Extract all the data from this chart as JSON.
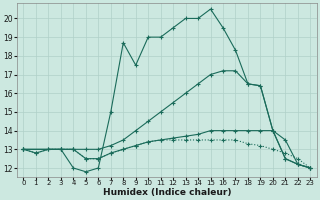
{
  "xlabel": "Humidex (Indice chaleur)",
  "bg_color": "#cce8e0",
  "line_color": "#1a6b5a",
  "grid_color": "#b0d0c8",
  "xlim": [
    -0.5,
    23.5
  ],
  "ylim": [
    11.5,
    20.8
  ],
  "xticks": [
    0,
    1,
    2,
    3,
    4,
    5,
    6,
    7,
    8,
    9,
    10,
    11,
    12,
    13,
    14,
    15,
    16,
    17,
    18,
    19,
    20,
    21,
    22,
    23
  ],
  "yticks": [
    12,
    13,
    14,
    15,
    16,
    17,
    18,
    19,
    20
  ],
  "series": [
    {
      "x": [
        0,
        1,
        2,
        3,
        4,
        5,
        6,
        7,
        8,
        9,
        10,
        11,
        12,
        13,
        14,
        15,
        16,
        17,
        18,
        19,
        20,
        21,
        22,
        23
      ],
      "y": [
        13,
        12.8,
        13.0,
        13.0,
        12.0,
        11.8,
        12.0,
        15.0,
        18.7,
        17.5,
        19.0,
        19.0,
        19.5,
        20.0,
        20.0,
        20.5,
        19.5,
        18.3,
        16.5,
        16.4,
        14.0,
        12.5,
        12.2,
        12.0
      ]
    },
    {
      "x": [
        0,
        3,
        4,
        5,
        6,
        7,
        8,
        9,
        10,
        11,
        12,
        13,
        14,
        15,
        16,
        17,
        18,
        19,
        20,
        21,
        22,
        23
      ],
      "y": [
        13,
        13.0,
        13.0,
        13.0,
        13.0,
        13.2,
        13.5,
        14.0,
        14.5,
        15.0,
        15.5,
        16.0,
        16.5,
        17.0,
        17.2,
        17.2,
        16.5,
        16.4,
        14.0,
        12.5,
        12.2,
        12.0
      ]
    },
    {
      "x": [
        0,
        3,
        4,
        5,
        6,
        7,
        8,
        9,
        10,
        11,
        12,
        13,
        14,
        15,
        16,
        17,
        18,
        19,
        20,
        21,
        22,
        23
      ],
      "y": [
        13,
        13.0,
        13.0,
        12.5,
        12.5,
        12.8,
        13.0,
        13.2,
        13.4,
        13.5,
        13.6,
        13.7,
        13.8,
        14.0,
        14.0,
        14.0,
        14.0,
        14.0,
        14.0,
        13.5,
        12.2,
        12.0
      ]
    },
    {
      "x": [
        0,
        1,
        2,
        3,
        4,
        5,
        6,
        7,
        8,
        9,
        10,
        11,
        12,
        13,
        14,
        15,
        16,
        17,
        18,
        19,
        20,
        21,
        22,
        23
      ],
      "y": [
        13,
        12.8,
        13.0,
        13.0,
        13.0,
        12.5,
        12.5,
        12.8,
        13.0,
        13.2,
        13.4,
        13.5,
        13.5,
        13.5,
        13.5,
        13.5,
        13.5,
        13.5,
        13.3,
        13.2,
        13.0,
        12.8,
        12.5,
        12.0
      ]
    }
  ],
  "linestyles": [
    "solid",
    "solid",
    "solid",
    "dotted"
  ]
}
